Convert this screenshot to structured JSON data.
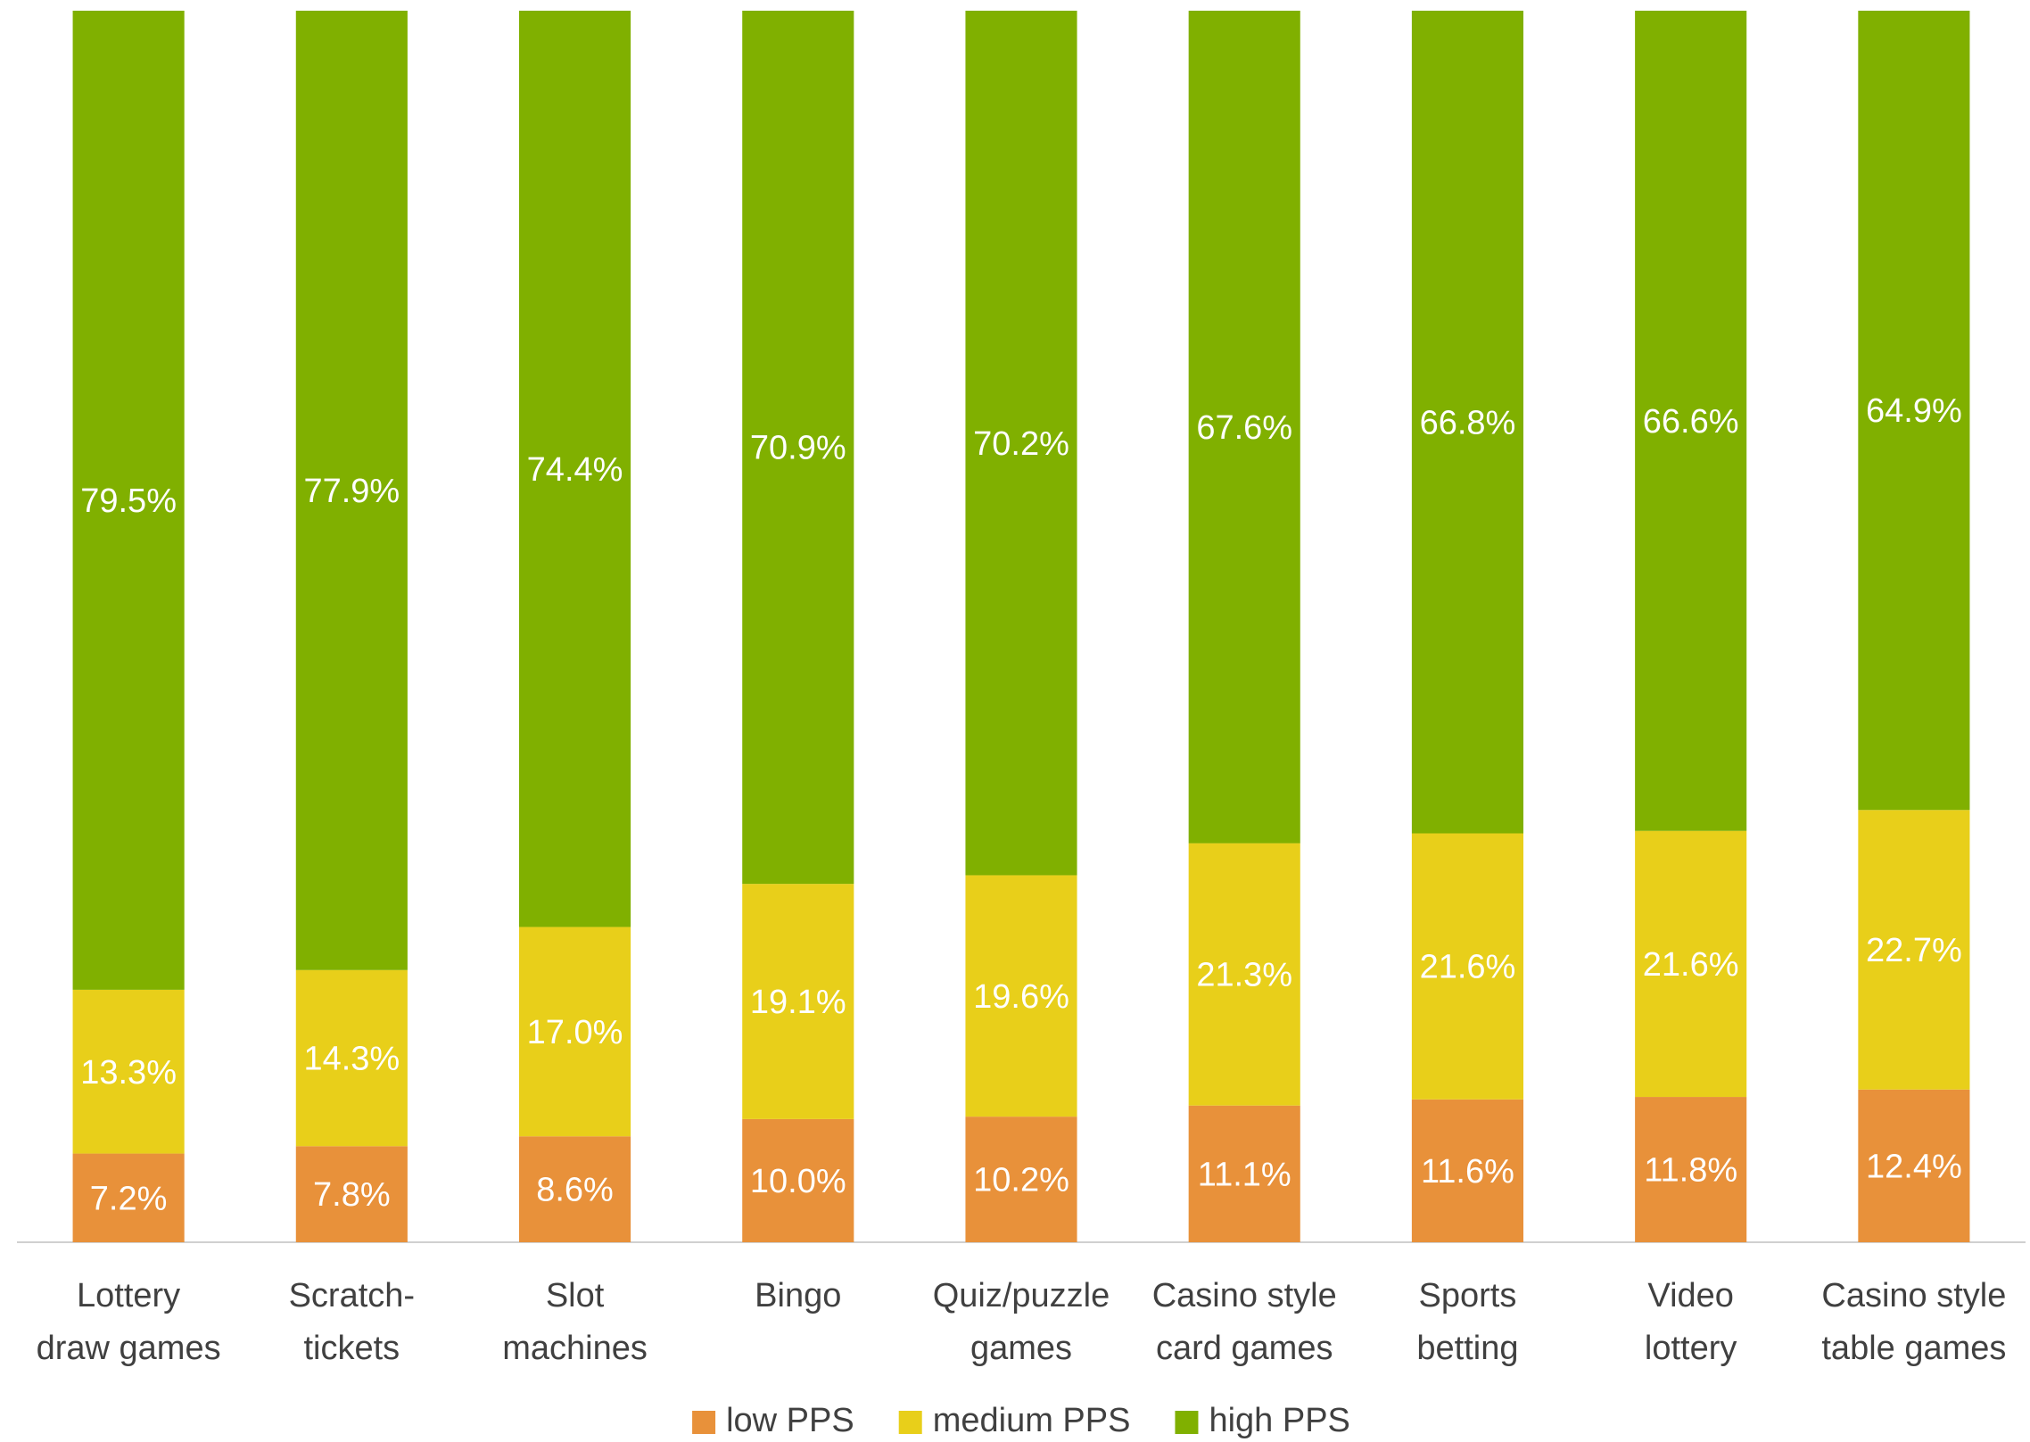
{
  "chart_data": {
    "type": "stacked_bar",
    "categories": [
      "Lottery\ndraw games",
      "Scratch-\ntickets",
      "Slot\nmachines",
      "Bingo",
      "Quiz/puzzle\ngames",
      "Casino style\ncard games",
      "Sports\nbetting",
      "Video\nlottery",
      "Casino style\ntable games"
    ],
    "ylim": [
      0,
      100
    ],
    "series": [
      {
        "name": "low PPS",
        "color": "#e8913a",
        "values": [
          7.2,
          7.8,
          8.6,
          10.0,
          10.2,
          11.1,
          11.6,
          11.8,
          12.4
        ],
        "value_labels": [
          "7.2%",
          "7.8%",
          "8.6%",
          "10.0%",
          "10.2%",
          "11.1%",
          "11.6%",
          "11.8%",
          "12.4%"
        ]
      },
      {
        "name": "medium PPS",
        "color": "#e8cf1a",
        "values": [
          13.3,
          14.3,
          17.0,
          19.1,
          19.6,
          21.3,
          21.6,
          21.6,
          22.7
        ],
        "value_labels": [
          "13.3%",
          "14.3%",
          "17.0%",
          "19.1%",
          "19.6%",
          "21.3%",
          "21.6%",
          "21.6%",
          "22.7%"
        ]
      },
      {
        "name": "high PPS",
        "color": "#80b000",
        "values": [
          79.5,
          77.9,
          74.4,
          70.9,
          70.2,
          67.6,
          66.8,
          66.6,
          64.9
        ],
        "value_labels": [
          "79.5%",
          "77.9%",
          "74.4%",
          "70.9%",
          "70.2%",
          "67.6%",
          "66.8%",
          "66.6%",
          "64.9%"
        ]
      }
    ],
    "legend": "bottom"
  }
}
